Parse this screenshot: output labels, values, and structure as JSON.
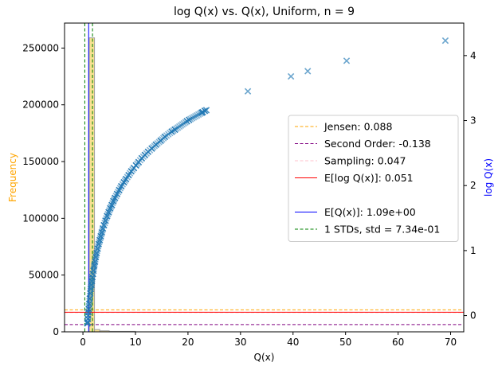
{
  "chart_data": {
    "type": "scatter",
    "title": "log Q(x) vs. Q(x), Uniform, n = 9",
    "xlabel": "Q(x)",
    "ylabel_left": "Frequency",
    "ylabel_right": "log Q(x)",
    "xlim": [
      -3.5,
      72.5
    ],
    "ylim_left": [
      0,
      272000
    ],
    "ylim_right": [
      -0.25,
      4.5
    ],
    "x_ticks": [
      0,
      10,
      20,
      30,
      40,
      50,
      60,
      70
    ],
    "y_left_ticks": [
      0,
      50000,
      100000,
      150000,
      200000,
      250000
    ],
    "y_right_ticks": [
      0,
      1,
      2,
      3,
      4
    ],
    "grid": false,
    "legend_position": "center-right",
    "colors": {
      "scatter": "#1f77b4",
      "histogram_fill": "#f5d76e",
      "histogram_edge": "#a0a0a0",
      "jensen": "#ffa500",
      "second_order": "#800080",
      "sampling": "#ffc0cb",
      "e_log": "#ff0000",
      "e_q": "#0000ff",
      "std": "#008000",
      "left_label": "#ffa500",
      "right_label": "#0000ff"
    },
    "histogram": {
      "bins": [
        {
          "x0": 1.2,
          "x1": 2.2,
          "count": 259000
        },
        {
          "x0": 2.2,
          "x1": 3.2,
          "count": 2000
        },
        {
          "x0": 3.2,
          "x1": 5.0,
          "count": 900
        },
        {
          "x0": 5.0,
          "x1": 10.0,
          "count": 400
        }
      ]
    },
    "hlines_right": [
      {
        "name": "Jensen",
        "y": 0.088,
        "color": "#ffa500",
        "dash": true
      },
      {
        "name": "Second Order",
        "y": -0.138,
        "color": "#800080",
        "dash": true
      },
      {
        "name": "Sampling",
        "y": 0.047,
        "color": "#ffc0cb",
        "dash": true
      },
      {
        "name": "E[log Q(x)]",
        "y": 0.051,
        "color": "#ff0000",
        "dash": false
      }
    ],
    "vlines": [
      {
        "name": "E[Q(x)]",
        "x": 1.09,
        "color": "#0000ff",
        "dash": false
      },
      {
        "name": "1 STDs lower",
        "x": 0.356,
        "color": "#008000",
        "dash": true
      },
      {
        "name": "1 STDs upper",
        "x": 1.824,
        "color": "#008000",
        "dash": true
      }
    ],
    "legend": [
      {
        "label": "Jensen: 0.088",
        "color": "#ffa500",
        "dash": true
      },
      {
        "label": "Second Order: -0.138",
        "color": "#800080",
        "dash": true
      },
      {
        "label": "Sampling: 0.047",
        "color": "#ffc0cb",
        "dash": true
      },
      {
        "label": "E[log Q(x)]: 0.051",
        "color": "#ff0000",
        "dash": false
      },
      {
        "label": "",
        "color": "",
        "dash": false
      },
      {
        "label": "E[Q(x)]: 1.09e+00",
        "color": "#0000ff",
        "dash": false
      },
      {
        "label": "1 STDs, std = 7.34e-01",
        "color": "#008000",
        "dash": true
      }
    ],
    "scatter_points": [
      [
        69.0,
        4.23
      ],
      [
        50.2,
        3.92
      ],
      [
        42.8,
        3.76
      ],
      [
        39.6,
        3.68
      ],
      [
        31.4,
        3.45
      ],
      [
        23.5,
        3.16
      ],
      [
        23.2,
        3.15
      ],
      [
        22.8,
        3.13
      ],
      [
        22.6,
        3.12
      ],
      [
        20.2,
        3.01
      ],
      [
        19.8,
        2.99
      ],
      [
        17.5,
        2.86
      ],
      [
        16.9,
        2.83
      ],
      [
        15.6,
        2.75
      ],
      [
        14.8,
        2.69
      ],
      [
        13.9,
        2.63
      ],
      [
        13.1,
        2.57
      ],
      [
        12.4,
        2.52
      ],
      [
        11.8,
        2.47
      ],
      [
        11.2,
        2.42
      ],
      [
        10.6,
        2.36
      ],
      [
        10.1,
        2.31
      ],
      [
        9.7,
        2.27
      ],
      [
        9.2,
        2.22
      ],
      [
        8.7,
        2.16
      ],
      [
        8.2,
        2.1
      ],
      [
        7.8,
        2.05
      ],
      [
        7.3,
        1.99
      ],
      [
        6.9,
        1.93
      ],
      [
        6.5,
        1.87
      ],
      [
        6.1,
        1.81
      ],
      [
        5.8,
        1.76
      ],
      [
        5.5,
        1.7
      ],
      [
        5.2,
        1.65
      ],
      [
        4.9,
        1.59
      ],
      [
        4.6,
        1.53
      ],
      [
        4.3,
        1.46
      ],
      [
        4.0,
        1.39
      ],
      [
        3.8,
        1.34
      ],
      [
        3.6,
        1.28
      ],
      [
        3.4,
        1.22
      ],
      [
        3.2,
        1.16
      ],
      [
        3.0,
        1.1
      ],
      [
        2.8,
        1.03
      ],
      [
        2.6,
        0.96
      ],
      [
        2.45,
        0.9
      ],
      [
        2.3,
        0.83
      ],
      [
        2.15,
        0.77
      ],
      [
        2.0,
        0.69
      ],
      [
        1.9,
        0.64
      ],
      [
        1.8,
        0.59
      ],
      [
        1.7,
        0.53
      ],
      [
        1.6,
        0.47
      ],
      [
        1.5,
        0.41
      ],
      [
        1.4,
        0.34
      ],
      [
        1.3,
        0.26
      ],
      [
        1.2,
        0.18
      ],
      [
        1.1,
        0.1
      ],
      [
        1.05,
        0.05
      ],
      [
        1.0,
        0.0
      ],
      [
        0.95,
        -0.05
      ],
      [
        0.9,
        -0.1
      ],
      [
        0.85,
        -0.12
      ]
    ]
  }
}
